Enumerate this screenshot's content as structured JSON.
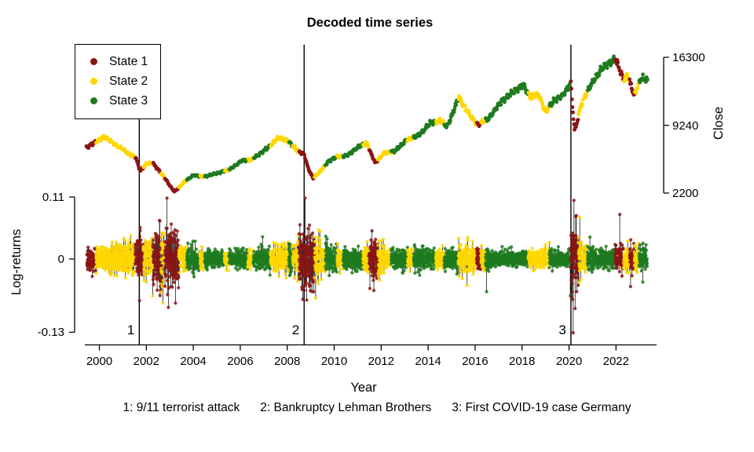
{
  "chart_data": {
    "type": "scatter",
    "title": "Decoded time series",
    "x_axis": {
      "label": "Year",
      "tick_values": [
        2000,
        2002,
        2004,
        2006,
        2008,
        2010,
        2012,
        2014,
        2016,
        2018,
        2020,
        2022
      ],
      "tick_labels": [
        "2000",
        "2002",
        "2004",
        "2006",
        "2008",
        "2010",
        "2012",
        "2014",
        "2016",
        "2018",
        "2020",
        "2022"
      ],
      "range": [
        1999.45,
        2023.45
      ],
      "grid": false
    },
    "legend": [
      {
        "label": "State 1",
        "color": "#8B1414"
      },
      {
        "label": "State 2",
        "color": "#FFD700"
      },
      {
        "label": "State 3",
        "color": "#1F7A1F"
      }
    ],
    "legend_position": "top-left",
    "events": [
      {
        "id": "1",
        "year": 2001.7,
        "caption": "1: 9/11 terrorist attack"
      },
      {
        "id": "2",
        "year": 2008.72,
        "caption": "2: Bankruptcy Lehman Brothers"
      },
      {
        "id": "3",
        "year": 2020.08,
        "caption": "3: First COVID-19 case Germany"
      }
    ],
    "state_segments": [
      [
        1999.45,
        1999.85,
        1
      ],
      [
        1999.85,
        2001.52,
        2
      ],
      [
        2001.52,
        2001.88,
        1
      ],
      [
        2001.88,
        2002.28,
        2
      ],
      [
        2002.28,
        2002.62,
        1
      ],
      [
        2002.62,
        2002.78,
        2
      ],
      [
        2002.78,
        2003.38,
        1
      ],
      [
        2003.38,
        2003.72,
        2
      ],
      [
        2003.72,
        2004.28,
        3
      ],
      [
        2004.28,
        2004.48,
        2
      ],
      [
        2004.48,
        2005.32,
        3
      ],
      [
        2005.32,
        2005.52,
        2
      ],
      [
        2005.52,
        2006.32,
        3
      ],
      [
        2006.32,
        2006.56,
        2
      ],
      [
        2006.56,
        2007.28,
        3
      ],
      [
        2007.28,
        2008.06,
        2
      ],
      [
        2008.06,
        2008.22,
        3
      ],
      [
        2008.22,
        2008.5,
        2
      ],
      [
        2008.5,
        2009.16,
        1
      ],
      [
        2009.16,
        2009.62,
        2
      ],
      [
        2009.62,
        2010.12,
        3
      ],
      [
        2010.12,
        2010.38,
        2
      ],
      [
        2010.38,
        2011.22,
        3
      ],
      [
        2011.22,
        2011.48,
        2
      ],
      [
        2011.48,
        2011.86,
        1
      ],
      [
        2011.86,
        2012.42,
        2
      ],
      [
        2012.42,
        2013.12,
        3
      ],
      [
        2013.12,
        2013.38,
        2
      ],
      [
        2013.38,
        2014.32,
        3
      ],
      [
        2014.32,
        2014.68,
        2
      ],
      [
        2014.68,
        2015.28,
        3
      ],
      [
        2015.28,
        2016.06,
        2
      ],
      [
        2016.06,
        2016.24,
        1
      ],
      [
        2016.24,
        2016.44,
        2
      ],
      [
        2016.44,
        2018.26,
        3
      ],
      [
        2018.26,
        2019.16,
        2
      ],
      [
        2019.16,
        2020.06,
        3
      ],
      [
        2020.06,
        2020.4,
        1
      ],
      [
        2020.4,
        2020.78,
        2
      ],
      [
        2020.78,
        2021.96,
        3
      ],
      [
        2021.96,
        2022.32,
        1
      ],
      [
        2022.32,
        2022.58,
        2
      ],
      [
        2022.58,
        2022.78,
        1
      ],
      [
        2022.78,
        2022.98,
        2
      ],
      [
        2022.98,
        2023.35,
        3
      ]
    ],
    "panels": {
      "close": {
        "ylabel": "Close",
        "axis_side": "right",
        "tick_values": [
          16300,
          9240,
          2200
        ],
        "tick_labels": [
          "16300",
          "9240",
          "2200"
        ],
        "series_keypoints": [
          [
            1999.45,
            6950
          ],
          [
            1999.75,
            7350
          ],
          [
            2000.2,
            8050
          ],
          [
            2000.6,
            7350
          ],
          [
            2000.95,
            6850
          ],
          [
            2001.3,
            6200
          ],
          [
            2001.55,
            5900
          ],
          [
            2001.74,
            4500
          ],
          [
            2002.0,
            5250
          ],
          [
            2002.3,
            5280
          ],
          [
            2002.6,
            4350
          ],
          [
            2002.85,
            3550
          ],
          [
            2003.2,
            2350
          ],
          [
            2003.6,
            3350
          ],
          [
            2004.0,
            4050
          ],
          [
            2004.45,
            3900
          ],
          [
            2005.0,
            4250
          ],
          [
            2005.55,
            4650
          ],
          [
            2006.05,
            5550
          ],
          [
            2006.45,
            5650
          ],
          [
            2006.85,
            6300
          ],
          [
            2007.3,
            7150
          ],
          [
            2007.6,
            7950
          ],
          [
            2008.05,
            7600
          ],
          [
            2008.45,
            6550
          ],
          [
            2008.72,
            6250
          ],
          [
            2008.9,
            4750
          ],
          [
            2009.1,
            3750
          ],
          [
            2009.4,
            4450
          ],
          [
            2009.75,
            5500
          ],
          [
            2010.1,
            5950
          ],
          [
            2010.55,
            6100
          ],
          [
            2011.05,
            7050
          ],
          [
            2011.4,
            7350
          ],
          [
            2011.75,
            5350
          ],
          [
            2012.1,
            6300
          ],
          [
            2012.6,
            6600
          ],
          [
            2013.1,
            7750
          ],
          [
            2013.6,
            8200
          ],
          [
            2014.1,
            9500
          ],
          [
            2014.55,
            9700
          ],
          [
            2014.8,
            9100
          ],
          [
            2015.3,
            12200
          ],
          [
            2015.8,
            10200
          ],
          [
            2016.12,
            9300
          ],
          [
            2016.55,
            9900
          ],
          [
            2017.1,
            11700
          ],
          [
            2017.6,
            12650
          ],
          [
            2018.05,
            13400
          ],
          [
            2018.35,
            12150
          ],
          [
            2018.7,
            12450
          ],
          [
            2019.0,
            10650
          ],
          [
            2019.35,
            11750
          ],
          [
            2019.75,
            12400
          ],
          [
            2020.08,
            13650
          ],
          [
            2020.24,
            8600
          ],
          [
            2020.5,
            11300
          ],
          [
            2020.8,
            12900
          ],
          [
            2021.1,
            14100
          ],
          [
            2021.45,
            15300
          ],
          [
            2021.75,
            15800
          ],
          [
            2021.98,
            16150
          ],
          [
            2022.15,
            15100
          ],
          [
            2022.3,
            14100
          ],
          [
            2022.5,
            14350
          ],
          [
            2022.78,
            12350
          ],
          [
            2023.05,
            14100
          ],
          [
            2023.35,
            13950
          ]
        ]
      },
      "log_returns": {
        "ylabel": "Log-returns",
        "axis_side": "left",
        "tick_values": [
          0.11,
          0,
          -0.13
        ],
        "tick_labels": [
          "0.11",
          "0",
          "-0.13"
        ],
        "volatility_eras": [
          [
            1999.45,
            2000.3,
            0.011
          ],
          [
            2000.3,
            2001.5,
            0.013
          ],
          [
            2001.5,
            2002.25,
            0.018
          ],
          [
            2002.25,
            2003.4,
            0.023
          ],
          [
            2003.4,
            2004.1,
            0.012
          ],
          [
            2004.1,
            2007.4,
            0.0075
          ],
          [
            2007.4,
            2008.45,
            0.013
          ],
          [
            2008.45,
            2009.45,
            0.024
          ],
          [
            2009.45,
            2010.1,
            0.012
          ],
          [
            2010.1,
            2011.4,
            0.0095
          ],
          [
            2011.4,
            2012.15,
            0.016
          ],
          [
            2012.15,
            2015.2,
            0.0085
          ],
          [
            2015.2,
            2016.6,
            0.012
          ],
          [
            2016.6,
            2018.15,
            0.006
          ],
          [
            2018.15,
            2019.3,
            0.008
          ],
          [
            2019.3,
            2020.05,
            0.0065
          ],
          [
            2020.05,
            2020.55,
            0.026
          ],
          [
            2020.55,
            2021.1,
            0.011
          ],
          [
            2021.1,
            2021.95,
            0.0075
          ],
          [
            2021.95,
            2023.0,
            0.0115
          ],
          [
            2023.0,
            2023.35,
            0.009
          ]
        ],
        "outliers": [
          [
            2001.71,
            -0.074
          ],
          [
            2001.735,
            0.056
          ],
          [
            2002.56,
            0.068
          ],
          [
            2002.88,
            0.108
          ],
          [
            2002.94,
            -0.086
          ],
          [
            2003.06,
            0.062
          ],
          [
            2008.76,
            0.108
          ],
          [
            2008.83,
            -0.073
          ],
          [
            2008.95,
            0.06
          ],
          [
            2009.05,
            -0.058
          ],
          [
            2011.61,
            0.05
          ],
          [
            2011.69,
            -0.056
          ],
          [
            2015.66,
            -0.047
          ],
          [
            2016.49,
            -0.058
          ],
          [
            2020.175,
            -0.131
          ],
          [
            2020.21,
            0.104
          ],
          [
            2020.26,
            -0.088
          ],
          [
            2020.31,
            0.077
          ],
          [
            2022.16,
            0.079
          ],
          [
            2022.62,
            -0.049
          ]
        ]
      }
    }
  }
}
